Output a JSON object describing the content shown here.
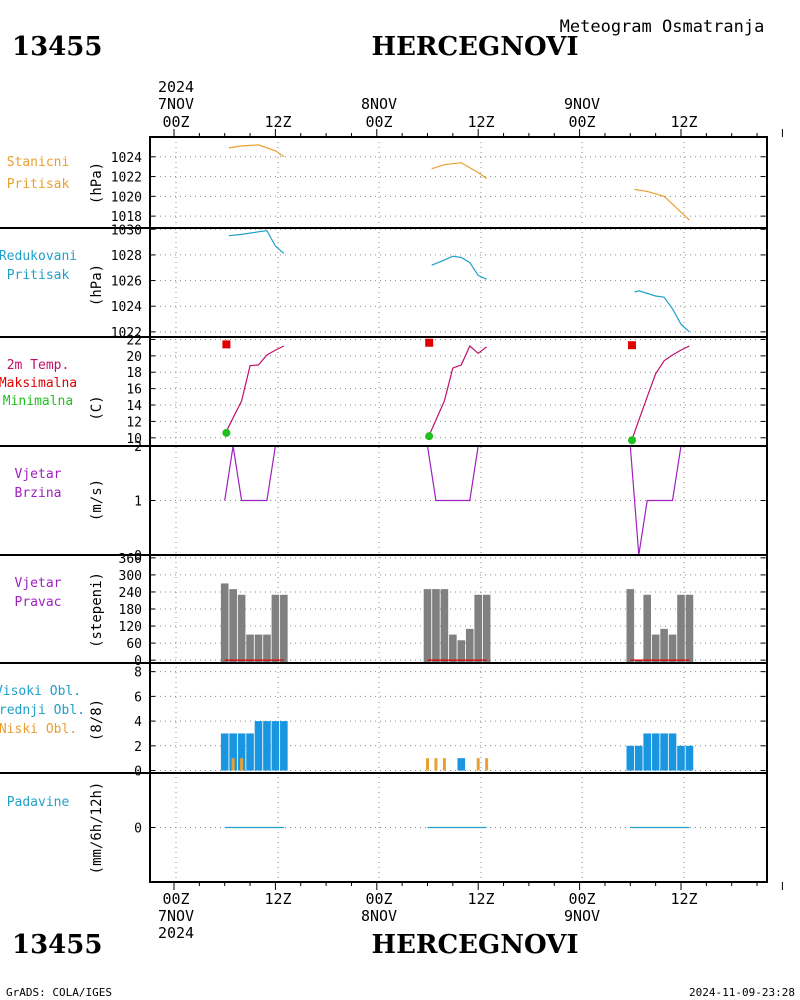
{
  "header": {
    "station_id": "13455",
    "station_name": "HERCEGNOVI",
    "subtitle": "Meteogram Osmatranja"
  },
  "footer": {
    "station_id": "13455",
    "station_name": "HERCEGNOVI",
    "credit": "GrADS: COLA/IGES",
    "timestamp": "2024-11-09-23:28"
  },
  "time_axis": {
    "year": "2024",
    "dates": [
      "7NOV",
      "8NOV",
      "9NOV"
    ],
    "major_labels": [
      "00Z",
      "12Z",
      "00Z",
      "12Z",
      "00Z",
      "12Z"
    ]
  },
  "colors": {
    "orange": "#e8a030",
    "cyan": "#20a0c8",
    "magenta": "#c0106a",
    "red": "#e00000",
    "green": "#20c020",
    "purple": "#a020c0",
    "gray": "#808080",
    "blue": "#1a96e0"
  },
  "chart_data": [
    {
      "type": "line",
      "panel": "stanicni",
      "labels": [
        "Stanicni",
        "Pritisak"
      ],
      "ylabel": "(hPa)",
      "yticks": [
        "1024",
        "1022",
        "1020",
        "1018"
      ],
      "ylim": [
        1016.8,
        1026
      ],
      "series": [
        {
          "x": [
            6.5,
            8,
            10,
            12,
            13
          ],
          "values": [
            1024.9,
            1025.1,
            1025.2,
            1024.6,
            1024.0
          ]
        },
        {
          "x": [
            30.5,
            32,
            34,
            36,
            37
          ],
          "values": [
            1022.8,
            1023.2,
            1023.4,
            1022.4,
            1021.8
          ]
        },
        {
          "x": [
            54.5,
            56,
            58,
            60,
            61
          ],
          "values": [
            1020.7,
            1020.5,
            1020.0,
            1018.4,
            1017.6
          ]
        }
      ]
    },
    {
      "type": "line",
      "panel": "redukovani",
      "labels": [
        "Redukovani",
        "Pritisak"
      ],
      "ylabel": "(hPa)",
      "yticks": [
        "1030",
        "1028",
        "1026",
        "1024",
        "1022"
      ],
      "ylim": [
        1021.6,
        1030.1
      ],
      "series": [
        {
          "x": [
            6.5,
            8,
            10,
            11,
            12,
            13
          ],
          "values": [
            1029.5,
            1029.6,
            1029.8,
            1029.9,
            1028.7,
            1028.1
          ]
        },
        {
          "x": [
            30.5,
            32,
            33,
            34,
            35,
            36,
            37
          ],
          "values": [
            1027.2,
            1027.6,
            1027.9,
            1027.8,
            1027.4,
            1026.4,
            1026.1
          ]
        },
        {
          "x": [
            54.5,
            55,
            57,
            58,
            59,
            60,
            61
          ],
          "values": [
            1025.1,
            1025.2,
            1024.8,
            1024.7,
            1023.8,
            1022.6,
            1022.0
          ]
        }
      ]
    },
    {
      "type": "line",
      "panel": "temperature",
      "labels": [
        "2m Temp.",
        "Maksimalna",
        "Minimalna"
      ],
      "ylabel": "(C)",
      "yticks": [
        "22",
        "20",
        "18",
        "16",
        "14",
        "12",
        "10"
      ],
      "ylim": [
        9.0,
        22.3
      ],
      "series": [
        {
          "x": [
            6.2,
            8,
            9,
            10,
            11,
            12,
            13
          ],
          "values": [
            10.8,
            14.5,
            18.8,
            18.9,
            20.1,
            20.7,
            21.2
          ]
        },
        {
          "x": [
            30.2,
            32,
            33,
            34,
            35,
            36,
            37
          ],
          "values": [
            10.3,
            14.5,
            18.5,
            18.9,
            21.2,
            20.3,
            21.1
          ]
        },
        {
          "x": [
            54.2,
            56,
            57,
            58,
            59,
            60,
            61
          ],
          "values": [
            9.8,
            15.0,
            17.8,
            19.4,
            20.1,
            20.7,
            21.2
          ]
        }
      ],
      "maxima": [
        {
          "x": 6.2,
          "value": 21.4
        },
        {
          "x": 30.2,
          "value": 21.6
        },
        {
          "x": 54.2,
          "value": 21.3
        }
      ],
      "minima": [
        {
          "x": 6.2,
          "value": 10.6
        },
        {
          "x": 30.2,
          "value": 10.2
        },
        {
          "x": 54.2,
          "value": 9.7
        }
      ]
    },
    {
      "type": "line",
      "panel": "wind_speed",
      "labels": [
        "Vjetar",
        "Brzina"
      ],
      "ylabel": "(m/s)",
      "yticks": [
        "2",
        "1",
        "0"
      ],
      "ylim": [
        0,
        2
      ],
      "series": [
        {
          "x": [
            6,
            7,
            8,
            11,
            12,
            13
          ],
          "values": [
            1,
            2,
            1,
            1,
            2,
            2
          ]
        },
        {
          "x": [
            30,
            31,
            32,
            35,
            36,
            37
          ],
          "values": [
            2,
            1,
            1,
            1,
            2,
            2
          ]
        },
        {
          "x": [
            54,
            55,
            56,
            59,
            60,
            61
          ],
          "values": [
            2,
            0,
            1,
            1,
            2,
            2
          ]
        }
      ]
    },
    {
      "type": "bar",
      "panel": "wind_direction",
      "labels": [
        "Vjetar",
        "Pravac"
      ],
      "ylabel": "(stepeni)",
      "yticks": [
        "360",
        "300",
        "240",
        "180",
        "120",
        "60",
        "0"
      ],
      "ylim": [
        -10,
        370
      ],
      "x": [
        6,
        7,
        8,
        9,
        10,
        11,
        12,
        13,
        30,
        31,
        32,
        33,
        34,
        35,
        36,
        37,
        54,
        55,
        56,
        57,
        58,
        59,
        60,
        61
      ],
      "values": [
        270,
        250,
        230,
        90,
        90,
        90,
        230,
        230,
        250,
        250,
        250,
        90,
        70,
        110,
        230,
        230,
        250,
        0,
        230,
        90,
        110,
        90,
        230,
        230
      ]
    },
    {
      "type": "bar",
      "panel": "clouds",
      "labels": [
        "Visoki Obl.",
        "Srednji Obl.",
        "Niski Obl."
      ],
      "ylabel": "(8/8)",
      "yticks": [
        "8",
        "6",
        "4",
        "2",
        "0"
      ],
      "ylim": [
        -0.2,
        8.7
      ],
      "high_x": [
        6,
        7,
        8,
        9,
        10,
        11,
        12,
        13,
        34,
        54,
        55,
        56,
        57,
        58,
        59,
        60,
        61
      ],
      "high_values": [
        3,
        3,
        3,
        3,
        4,
        4,
        4,
        4,
        1,
        2,
        2,
        3,
        3,
        3,
        3,
        2,
        2
      ],
      "low_x": [
        7,
        8,
        30,
        31,
        32,
        36,
        37
      ],
      "low_values": [
        1,
        1,
        1,
        1,
        1,
        1,
        1
      ]
    },
    {
      "type": "line",
      "panel": "precipitation",
      "labels": [
        "Padavine"
      ],
      "ylabel": "(mm/6h/12h)",
      "yticks": [
        "0"
      ],
      "ylim": [
        -0.5,
        0.5
      ],
      "series": [
        {
          "x": [
            6,
            13
          ],
          "values": [
            0,
            0
          ]
        },
        {
          "x": [
            30,
            37
          ],
          "values": [
            0,
            0
          ]
        },
        {
          "x": [
            54,
            61
          ],
          "values": [
            0,
            0
          ]
        }
      ]
    }
  ]
}
